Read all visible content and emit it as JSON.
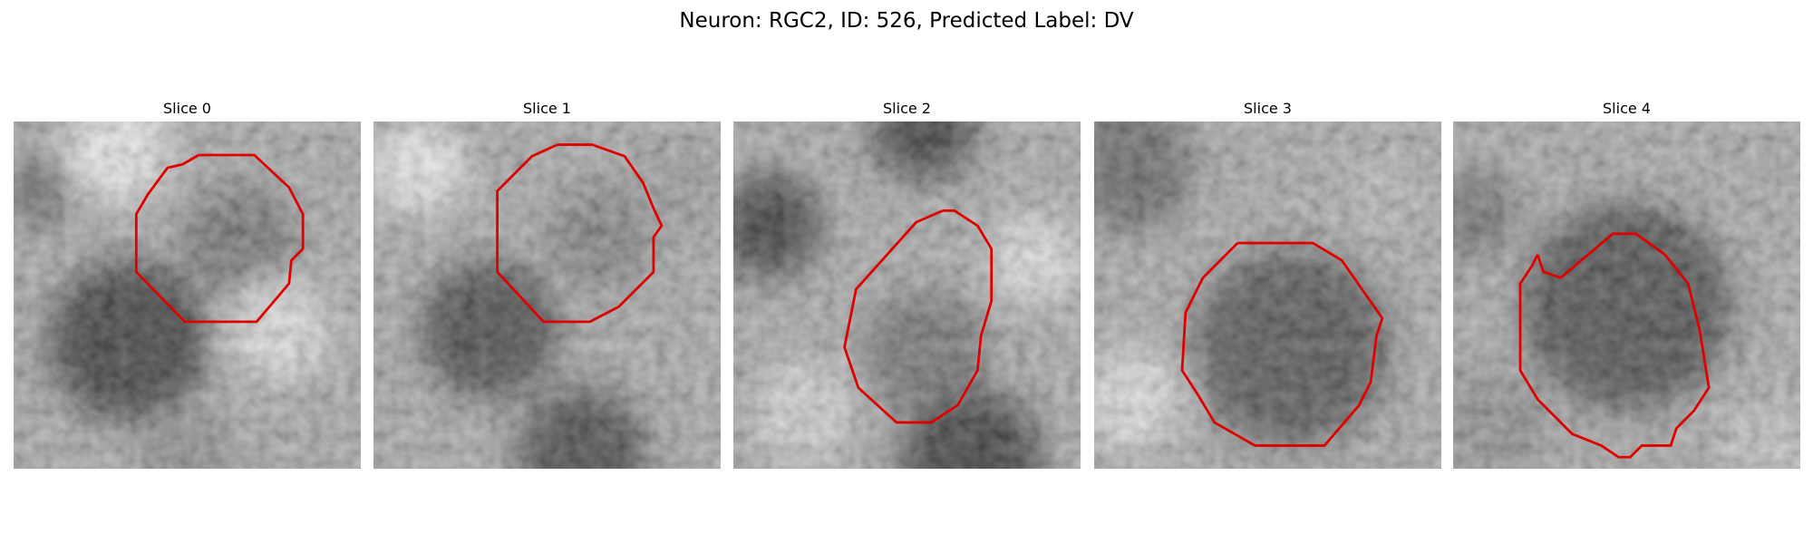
{
  "title": "Neuron: RGC2, ID: 526, Predicted Label: DV",
  "panels": [
    {
      "title": "Slice 0"
    },
    {
      "title": "Slice 1"
    },
    {
      "title": "Slice 2"
    },
    {
      "title": "Slice 3"
    },
    {
      "title": "Slice 4"
    }
  ]
}
